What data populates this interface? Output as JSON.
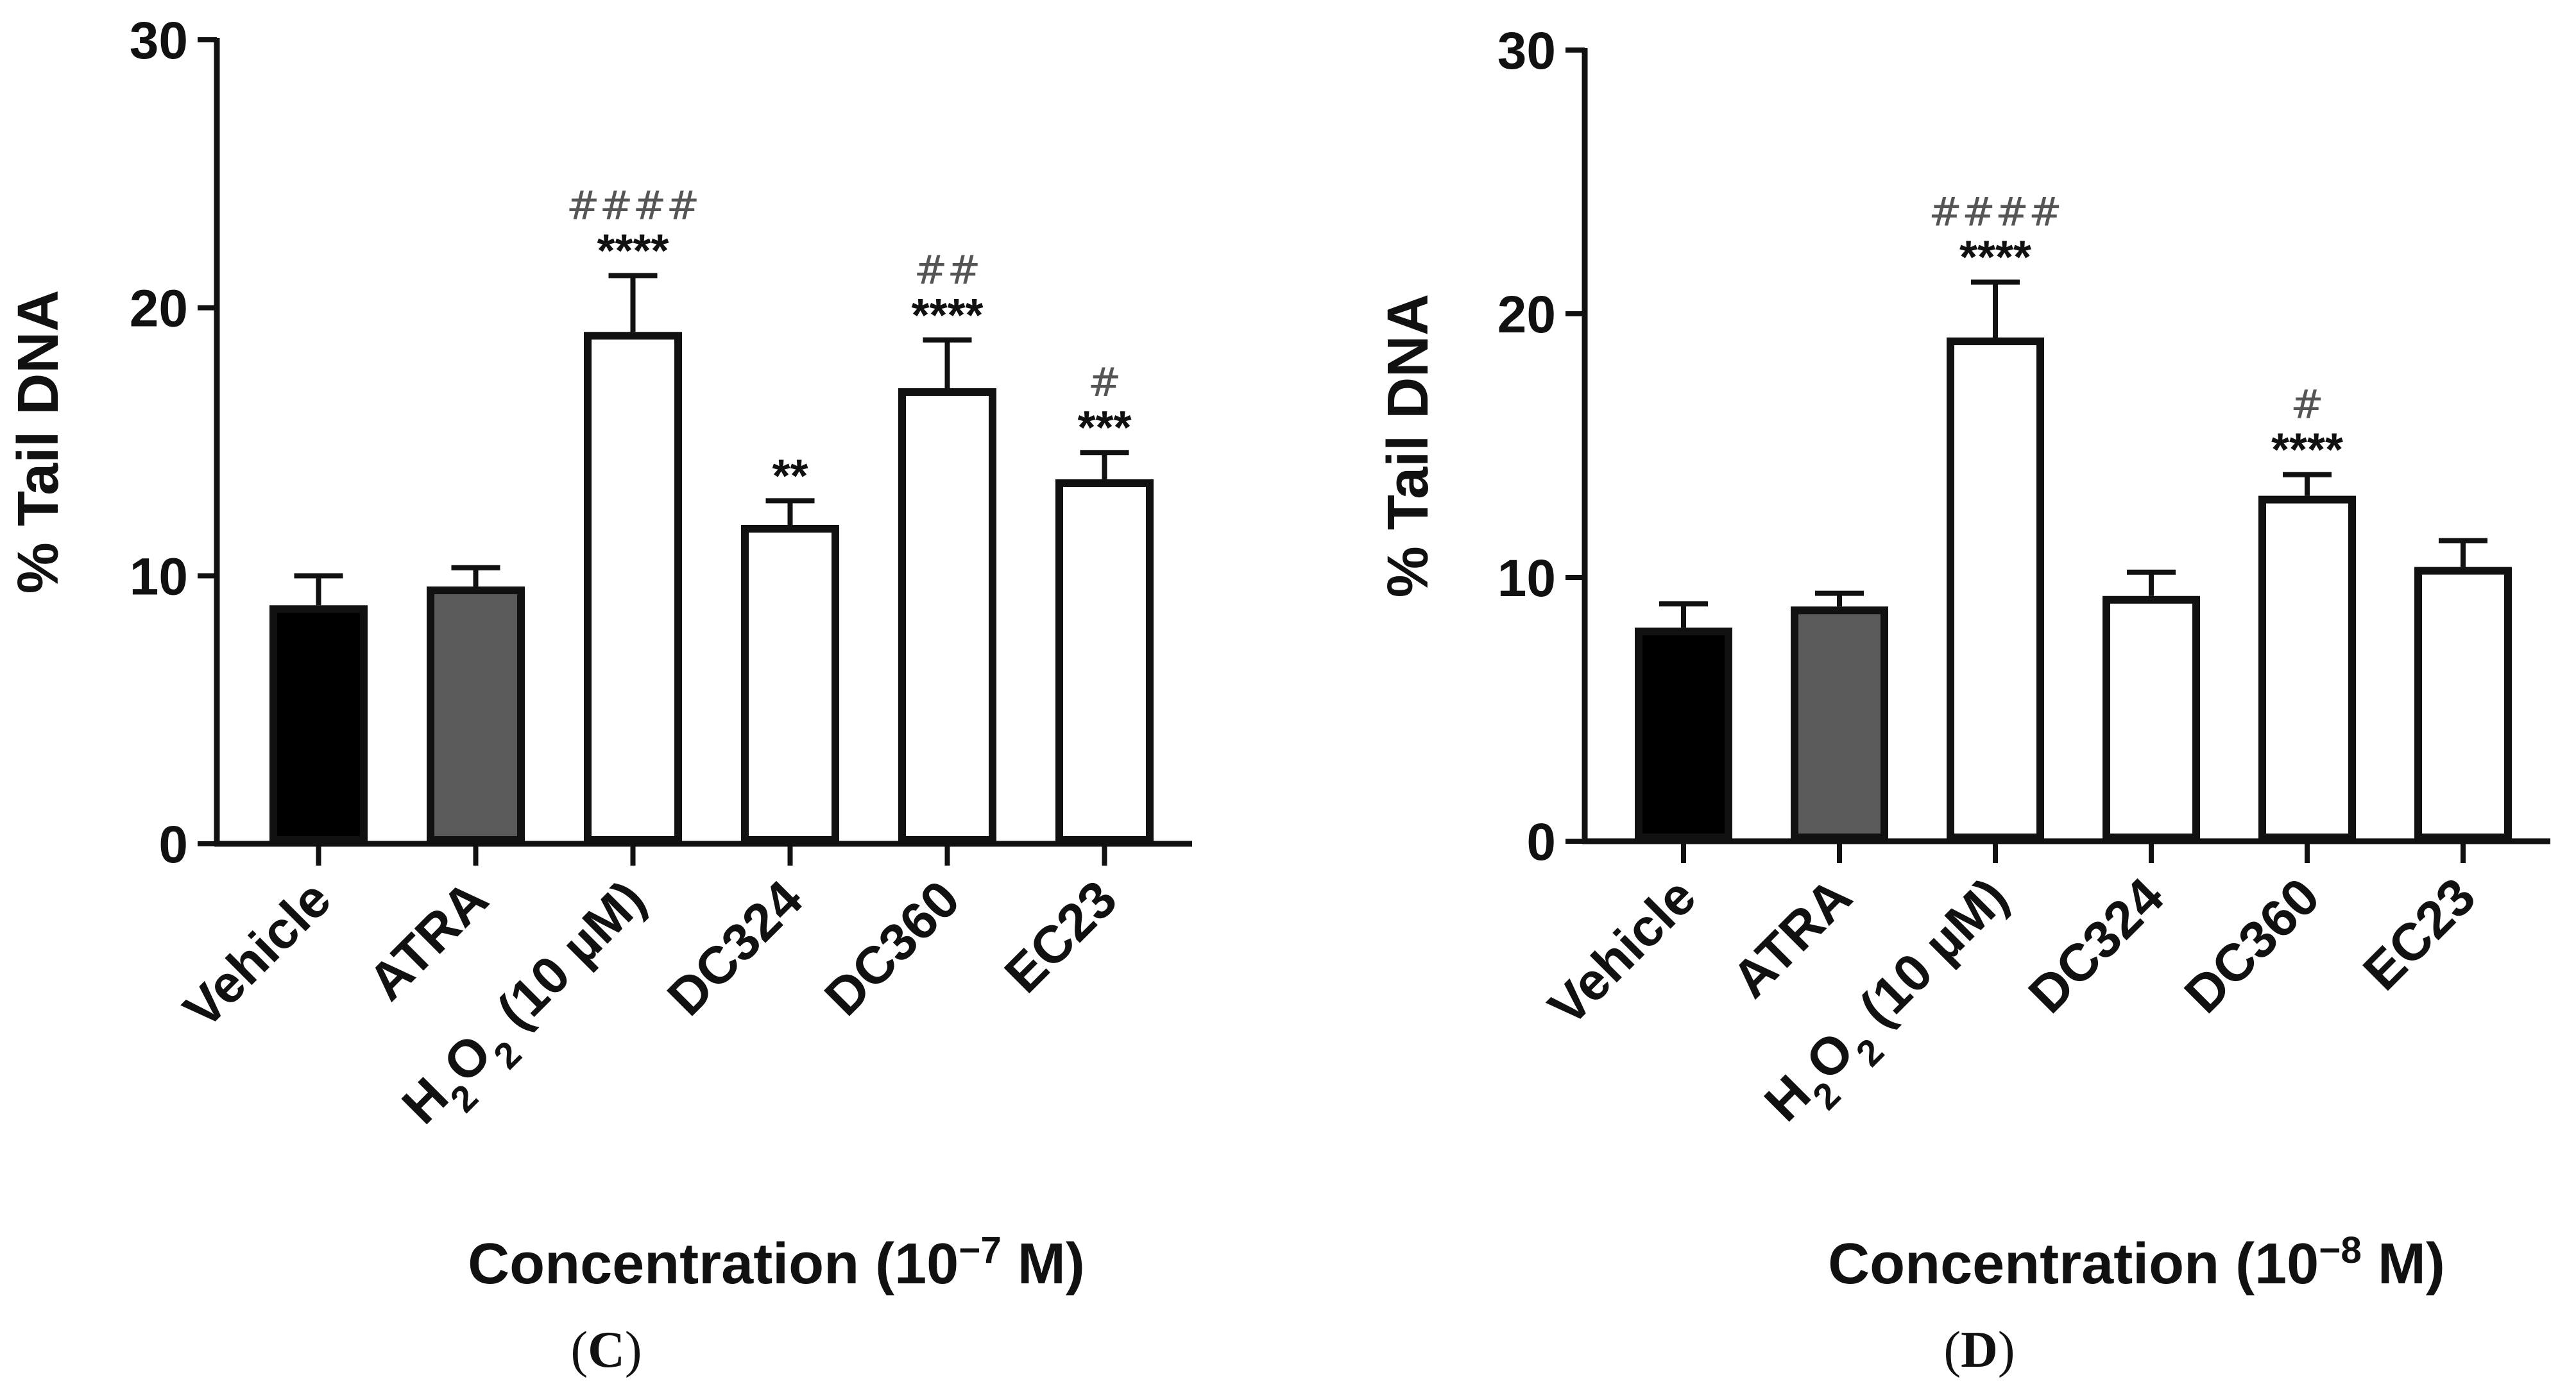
{
  "chart_data": [
    {
      "type": "bar",
      "panel": "(C)",
      "title": "",
      "ylabel": "% Tail DNA",
      "xlabel": "Concentration (10−7 M)",
      "ylim": [
        0,
        30
      ],
      "yticks": [
        "0",
        "10",
        "20",
        "30"
      ],
      "categories": [
        "Vehicle",
        "ATRA",
        "H2O2 (10 µM)",
        "DC324",
        "DC360",
        "EC23"
      ],
      "values": [
        8.9,
        9.6,
        19.1,
        11.9,
        17.0,
        13.6
      ],
      "errors": [
        1.1,
        0.7,
        2.1,
        0.9,
        1.8,
        1.0
      ],
      "fills": [
        "#000000",
        "#5a5a5a",
        "#ffffff",
        "#ffffff",
        "#ffffff",
        "#ffffff"
      ],
      "stars": [
        "",
        "",
        "****",
        "**",
        "****",
        "***"
      ],
      "hashes": [
        "",
        "",
        "####",
        "",
        "##",
        "#"
      ]
    },
    {
      "type": "bar",
      "panel": "(D)",
      "title": "",
      "ylabel": "% Tail DNA",
      "xlabel": "Concentration (10−8 M)",
      "ylim": [
        0,
        30
      ],
      "yticks": [
        "0",
        "10",
        "20",
        "30"
      ],
      "categories": [
        "Vehicle",
        "ATRA",
        "H2O2 (10 µM)",
        "DC324",
        "DC360",
        "EC23"
      ],
      "values": [
        8.1,
        8.9,
        19.1,
        9.3,
        13.1,
        10.4
      ],
      "errors": [
        0.9,
        0.5,
        2.1,
        0.9,
        0.8,
        1.0
      ],
      "fills": [
        "#000000",
        "#5a5a5a",
        "#ffffff",
        "#ffffff",
        "#ffffff",
        "#ffffff"
      ],
      "stars": [
        "",
        "",
        "****",
        "",
        "****",
        ""
      ],
      "hashes": [
        "",
        "",
        "####",
        "",
        "#",
        ""
      ]
    }
  ]
}
